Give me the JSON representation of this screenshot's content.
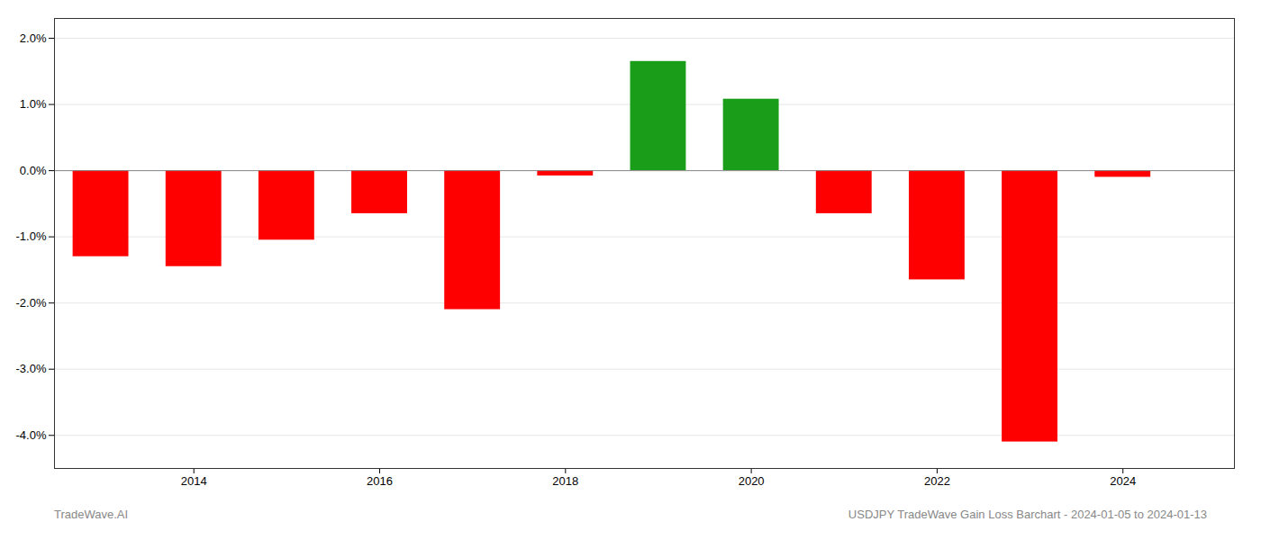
{
  "chart_data": {
    "type": "bar",
    "x": [
      2013,
      2014,
      2015,
      2016,
      2017,
      2018,
      2019,
      2020,
      2021,
      2022,
      2023,
      2024
    ],
    "values": [
      -0.013,
      -0.0145,
      -0.0105,
      -0.0065,
      -0.021,
      -0.0008,
      0.0165,
      0.0108,
      -0.0065,
      -0.0165,
      -0.041,
      -0.001
    ],
    "colors": [
      "#ff0000",
      "#ff0000",
      "#ff0000",
      "#ff0000",
      "#ff0000",
      "#ff0000",
      "#1a9e1a",
      "#1a9e1a",
      "#ff0000",
      "#ff0000",
      "#ff0000",
      "#ff0000"
    ],
    "xlim": [
      2012.5,
      2025.2
    ],
    "xticks": [
      2014,
      2016,
      2018,
      2020,
      2022,
      2024
    ],
    "ylim": [
      -0.045,
      0.023
    ],
    "yticks": [
      {
        "value": -0.04,
        "label": "-4.0%"
      },
      {
        "value": -0.03,
        "label": "-3.0%"
      },
      {
        "value": -0.02,
        "label": "-2.0%"
      },
      {
        "value": -0.01,
        "label": "-1.0%"
      },
      {
        "value": 0.0,
        "label": "0.0%"
      },
      {
        "value": 0.01,
        "label": "1.0%"
      },
      {
        "value": 0.02,
        "label": "2.0%"
      }
    ],
    "grid": true,
    "annotations": [
      "TradeWave.AI",
      "USDJPY TradeWave Gain Loss Barchart - 2024-01-05 to 2024-01-13"
    ]
  }
}
